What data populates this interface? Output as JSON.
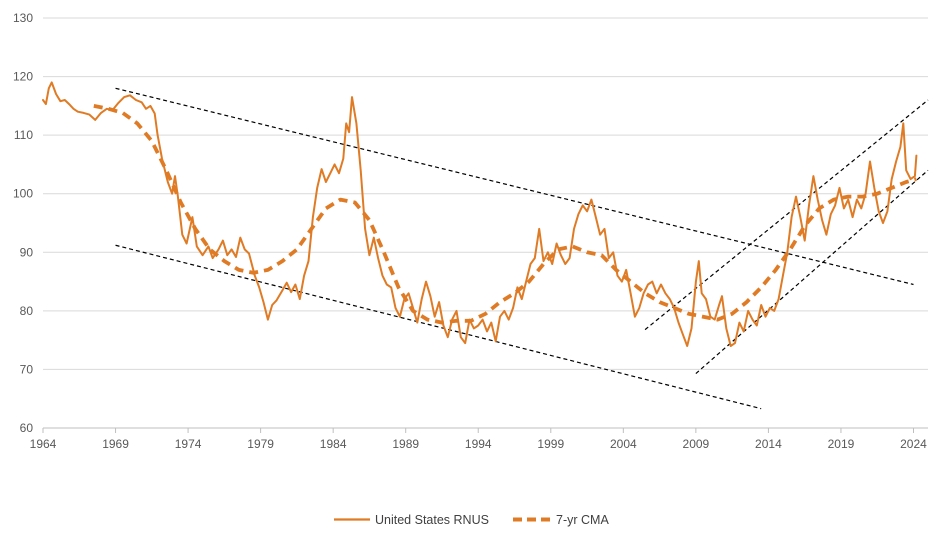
{
  "chart_data": {
    "type": "line",
    "title": "",
    "xlabel": "",
    "ylabel": "",
    "xlim": [
      1964,
      2025
    ],
    "ylim": [
      60,
      130
    ],
    "grid": "horizontal",
    "legend_position": "bottom",
    "colors": {
      "series": "#E07B25",
      "trend": "#000000",
      "grid": "#d9d9d9",
      "axis": "#bfbfbf"
    },
    "x_ticks": [
      "1964",
      "1969",
      "1974",
      "1979",
      "1984",
      "1989",
      "1994",
      "1999",
      "2004",
      "2009",
      "2014",
      "2019",
      "2024"
    ],
    "y_ticks": [
      "60",
      "70",
      "80",
      "90",
      "100",
      "110",
      "120",
      "130"
    ],
    "series": [
      {
        "name": "United States RNUS",
        "style": "solid",
        "points": [
          [
            1964.0,
            116
          ],
          [
            1964.2,
            115.3
          ],
          [
            1964.4,
            118
          ],
          [
            1964.6,
            119
          ],
          [
            1964.9,
            117
          ],
          [
            1965.2,
            115.8
          ],
          [
            1965.5,
            116
          ],
          [
            1965.8,
            115.3
          ],
          [
            1966.1,
            114.5
          ],
          [
            1966.4,
            114
          ],
          [
            1966.8,
            113.8
          ],
          [
            1967.2,
            113.5
          ],
          [
            1967.6,
            112.6
          ],
          [
            1968.0,
            113.8
          ],
          [
            1968.4,
            114.5
          ],
          [
            1968.8,
            114.3
          ],
          [
            1969.2,
            115.5
          ],
          [
            1969.6,
            116.5
          ],
          [
            1970.0,
            116.8
          ],
          [
            1970.4,
            116
          ],
          [
            1970.8,
            115.6
          ],
          [
            1971.1,
            114.5
          ],
          [
            1971.4,
            115
          ],
          [
            1971.7,
            113.7
          ],
          [
            1971.9,
            110
          ],
          [
            1972.2,
            106
          ],
          [
            1972.6,
            102
          ],
          [
            1972.9,
            100
          ],
          [
            1973.1,
            103
          ],
          [
            1973.3,
            99.5
          ],
          [
            1973.6,
            93
          ],
          [
            1973.9,
            91.5
          ],
          [
            1974.3,
            96
          ],
          [
            1974.6,
            91
          ],
          [
            1975.0,
            89.5
          ],
          [
            1975.4,
            91
          ],
          [
            1975.7,
            89
          ],
          [
            1976.1,
            90.5
          ],
          [
            1976.4,
            92
          ],
          [
            1976.7,
            89.5
          ],
          [
            1977.0,
            90.5
          ],
          [
            1977.3,
            89.2
          ],
          [
            1977.6,
            92.5
          ],
          [
            1977.9,
            90.5
          ],
          [
            1978.2,
            89.8
          ],
          [
            1978.6,
            86
          ],
          [
            1978.9,
            84
          ],
          [
            1979.2,
            81.5
          ],
          [
            1979.5,
            78.5
          ],
          [
            1979.8,
            81
          ],
          [
            1980.1,
            81.8
          ],
          [
            1980.5,
            83.5
          ],
          [
            1980.8,
            84.8
          ],
          [
            1981.1,
            83.2
          ],
          [
            1981.4,
            84.5
          ],
          [
            1981.7,
            82
          ],
          [
            1982.0,
            86
          ],
          [
            1982.3,
            88.5
          ],
          [
            1982.6,
            96
          ],
          [
            1982.9,
            101
          ],
          [
            1983.2,
            104.2
          ],
          [
            1983.5,
            102
          ],
          [
            1983.8,
            103.5
          ],
          [
            1984.1,
            105
          ],
          [
            1984.4,
            103.5
          ],
          [
            1984.7,
            106
          ],
          [
            1984.9,
            112
          ],
          [
            1985.1,
            110.5
          ],
          [
            1985.3,
            116.5
          ],
          [
            1985.6,
            112
          ],
          [
            1985.9,
            104
          ],
          [
            1986.2,
            94
          ],
          [
            1986.5,
            89.5
          ],
          [
            1986.8,
            92.5
          ],
          [
            1987.1,
            89
          ],
          [
            1987.4,
            86
          ],
          [
            1987.7,
            84.5
          ],
          [
            1988.0,
            84
          ],
          [
            1988.3,
            80.5
          ],
          [
            1988.6,
            79
          ],
          [
            1988.9,
            82
          ],
          [
            1989.2,
            83
          ],
          [
            1989.5,
            80.5
          ],
          [
            1989.8,
            78
          ],
          [
            1990.1,
            82
          ],
          [
            1990.4,
            85
          ],
          [
            1990.7,
            82.5
          ],
          [
            1991.0,
            79
          ],
          [
            1991.3,
            81.5
          ],
          [
            1991.6,
            77.5
          ],
          [
            1991.9,
            75.5
          ],
          [
            1992.2,
            78.5
          ],
          [
            1992.5,
            80
          ],
          [
            1992.8,
            75.5
          ],
          [
            1993.1,
            74.5
          ],
          [
            1993.4,
            78.5
          ],
          [
            1993.7,
            77
          ],
          [
            1994.0,
            77.5
          ],
          [
            1994.3,
            78.5
          ],
          [
            1994.6,
            76.5
          ],
          [
            1994.9,
            78
          ],
          [
            1995.2,
            74.8
          ],
          [
            1995.5,
            79
          ],
          [
            1995.8,
            80
          ],
          [
            1996.1,
            78.5
          ],
          [
            1996.4,
            80.5
          ],
          [
            1996.7,
            84
          ],
          [
            1997.0,
            82
          ],
          [
            1997.3,
            85
          ],
          [
            1997.6,
            88
          ],
          [
            1997.9,
            89
          ],
          [
            1998.2,
            94
          ],
          [
            1998.5,
            88.5
          ],
          [
            1998.8,
            90
          ],
          [
            1999.1,
            88
          ],
          [
            1999.4,
            91.5
          ],
          [
            1999.7,
            89.5
          ],
          [
            2000.0,
            88
          ],
          [
            2000.3,
            89
          ],
          [
            2000.6,
            94
          ],
          [
            2000.9,
            96.5
          ],
          [
            2001.2,
            98
          ],
          [
            2001.5,
            97
          ],
          [
            2001.8,
            99
          ],
          [
            2002.1,
            96
          ],
          [
            2002.4,
            93
          ],
          [
            2002.7,
            94
          ],
          [
            2003.0,
            89
          ],
          [
            2003.3,
            90
          ],
          [
            2003.6,
            86
          ],
          [
            2003.9,
            85
          ],
          [
            2004.2,
            87
          ],
          [
            2004.5,
            83
          ],
          [
            2004.8,
            79
          ],
          [
            2005.1,
            80.5
          ],
          [
            2005.4,
            83
          ],
          [
            2005.7,
            84.5
          ],
          [
            2006.0,
            85
          ],
          [
            2006.3,
            83
          ],
          [
            2006.6,
            84.5
          ],
          [
            2006.9,
            83
          ],
          [
            2007.2,
            82
          ],
          [
            2007.5,
            80.5
          ],
          [
            2007.8,
            78
          ],
          [
            2008.1,
            76
          ],
          [
            2008.4,
            74
          ],
          [
            2008.7,
            77
          ],
          [
            2009.0,
            85
          ],
          [
            2009.2,
            88.5
          ],
          [
            2009.4,
            83
          ],
          [
            2009.7,
            82
          ],
          [
            2010.0,
            79
          ],
          [
            2010.3,
            78.5
          ],
          [
            2010.6,
            81
          ],
          [
            2010.8,
            82.5
          ],
          [
            2011.1,
            77
          ],
          [
            2011.4,
            74
          ],
          [
            2011.7,
            74.5
          ],
          [
            2012.0,
            78
          ],
          [
            2012.3,
            76.5
          ],
          [
            2012.6,
            80
          ],
          [
            2012.9,
            78.5
          ],
          [
            2013.2,
            77.5
          ],
          [
            2013.5,
            81
          ],
          [
            2013.8,
            79
          ],
          [
            2014.1,
            80.5
          ],
          [
            2014.4,
            80
          ],
          [
            2014.7,
            82
          ],
          [
            2015.0,
            86
          ],
          [
            2015.3,
            90
          ],
          [
            2015.6,
            96
          ],
          [
            2015.9,
            99.5
          ],
          [
            2016.2,
            96
          ],
          [
            2016.5,
            92
          ],
          [
            2016.8,
            98
          ],
          [
            2017.1,
            103
          ],
          [
            2017.4,
            99
          ],
          [
            2017.7,
            95.5
          ],
          [
            2018.0,
            93
          ],
          [
            2018.3,
            96.5
          ],
          [
            2018.6,
            98
          ],
          [
            2018.9,
            101
          ],
          [
            2019.2,
            97.5
          ],
          [
            2019.5,
            99
          ],
          [
            2019.8,
            96
          ],
          [
            2020.1,
            99
          ],
          [
            2020.4,
            97.5
          ],
          [
            2020.7,
            100
          ],
          [
            2021.0,
            105.5
          ],
          [
            2021.3,
            101
          ],
          [
            2021.6,
            97
          ],
          [
            2021.9,
            95
          ],
          [
            2022.2,
            97
          ],
          [
            2022.5,
            102.5
          ],
          [
            2022.8,
            105.5
          ],
          [
            2023.1,
            108
          ],
          [
            2023.3,
            112
          ],
          [
            2023.5,
            104
          ],
          [
            2023.8,
            102.5
          ],
          [
            2024.1,
            103
          ],
          [
            2024.2,
            106.5
          ]
        ]
      },
      {
        "name": "7-yr CMA",
        "style": "dashed",
        "points": [
          [
            1967.5,
            115
          ],
          [
            1968.5,
            114.5
          ],
          [
            1969.5,
            113.8
          ],
          [
            1970.5,
            112
          ],
          [
            1971.5,
            109
          ],
          [
            1972.5,
            104
          ],
          [
            1973.5,
            98.5
          ],
          [
            1974.5,
            94
          ],
          [
            1975.5,
            90.5
          ],
          [
            1976.5,
            88.5
          ],
          [
            1977.5,
            87
          ],
          [
            1978.5,
            86.5
          ],
          [
            1979.5,
            87
          ],
          [
            1980.5,
            88.5
          ],
          [
            1981.5,
            90.5
          ],
          [
            1982.5,
            94
          ],
          [
            1983.5,
            97.5
          ],
          [
            1984.5,
            99
          ],
          [
            1985.5,
            98.5
          ],
          [
            1986.5,
            95.5
          ],
          [
            1987.5,
            90
          ],
          [
            1988.5,
            84
          ],
          [
            1989.5,
            80
          ],
          [
            1990.5,
            78.5
          ],
          [
            1991.5,
            78
          ],
          [
            1992.5,
            78.3
          ],
          [
            1993.5,
            78.3
          ],
          [
            1994.5,
            79.5
          ],
          [
            1995.5,
            81.5
          ],
          [
            1996.5,
            83
          ],
          [
            1997.5,
            85
          ],
          [
            1998.5,
            88
          ],
          [
            1999.5,
            90.5
          ],
          [
            2000.5,
            91
          ],
          [
            2001.5,
            90
          ],
          [
            2002.5,
            89.5
          ],
          [
            2003.5,
            87
          ],
          [
            2004.5,
            85
          ],
          [
            2005.5,
            83
          ],
          [
            2006.5,
            81.5
          ],
          [
            2007.5,
            80.5
          ],
          [
            2008.5,
            79.5
          ],
          [
            2009.5,
            79
          ],
          [
            2010.5,
            78.5
          ],
          [
            2011.5,
            79.5
          ],
          [
            2012.5,
            81.5
          ],
          [
            2013.5,
            84
          ],
          [
            2014.5,
            87
          ],
          [
            2015.5,
            90.5
          ],
          [
            2016.5,
            94.5
          ],
          [
            2017.5,
            97.5
          ],
          [
            2018.5,
            99
          ],
          [
            2019.5,
            99.5
          ],
          [
            2020.5,
            99.5
          ],
          [
            2021.5,
            100
          ],
          [
            2022.5,
            101
          ],
          [
            2023.5,
            102
          ],
          [
            2024.2,
            102.5
          ]
        ]
      }
    ],
    "trend_lines": [
      {
        "name": "upper-channel-1",
        "from": [
          1969.0,
          118
        ],
        "to": [
          2024.0,
          84.5
        ]
      },
      {
        "name": "lower-channel-1",
        "from": [
          1969.0,
          91.2
        ],
        "to": [
          2013.5,
          63.3
        ]
      },
      {
        "name": "upper-channel-2",
        "from": [
          2005.5,
          76.8
        ],
        "to": [
          2025.0,
          116
        ]
      },
      {
        "name": "lower-channel-2",
        "from": [
          2009.0,
          69.3
        ],
        "to": [
          2025.0,
          104
        ]
      }
    ]
  }
}
